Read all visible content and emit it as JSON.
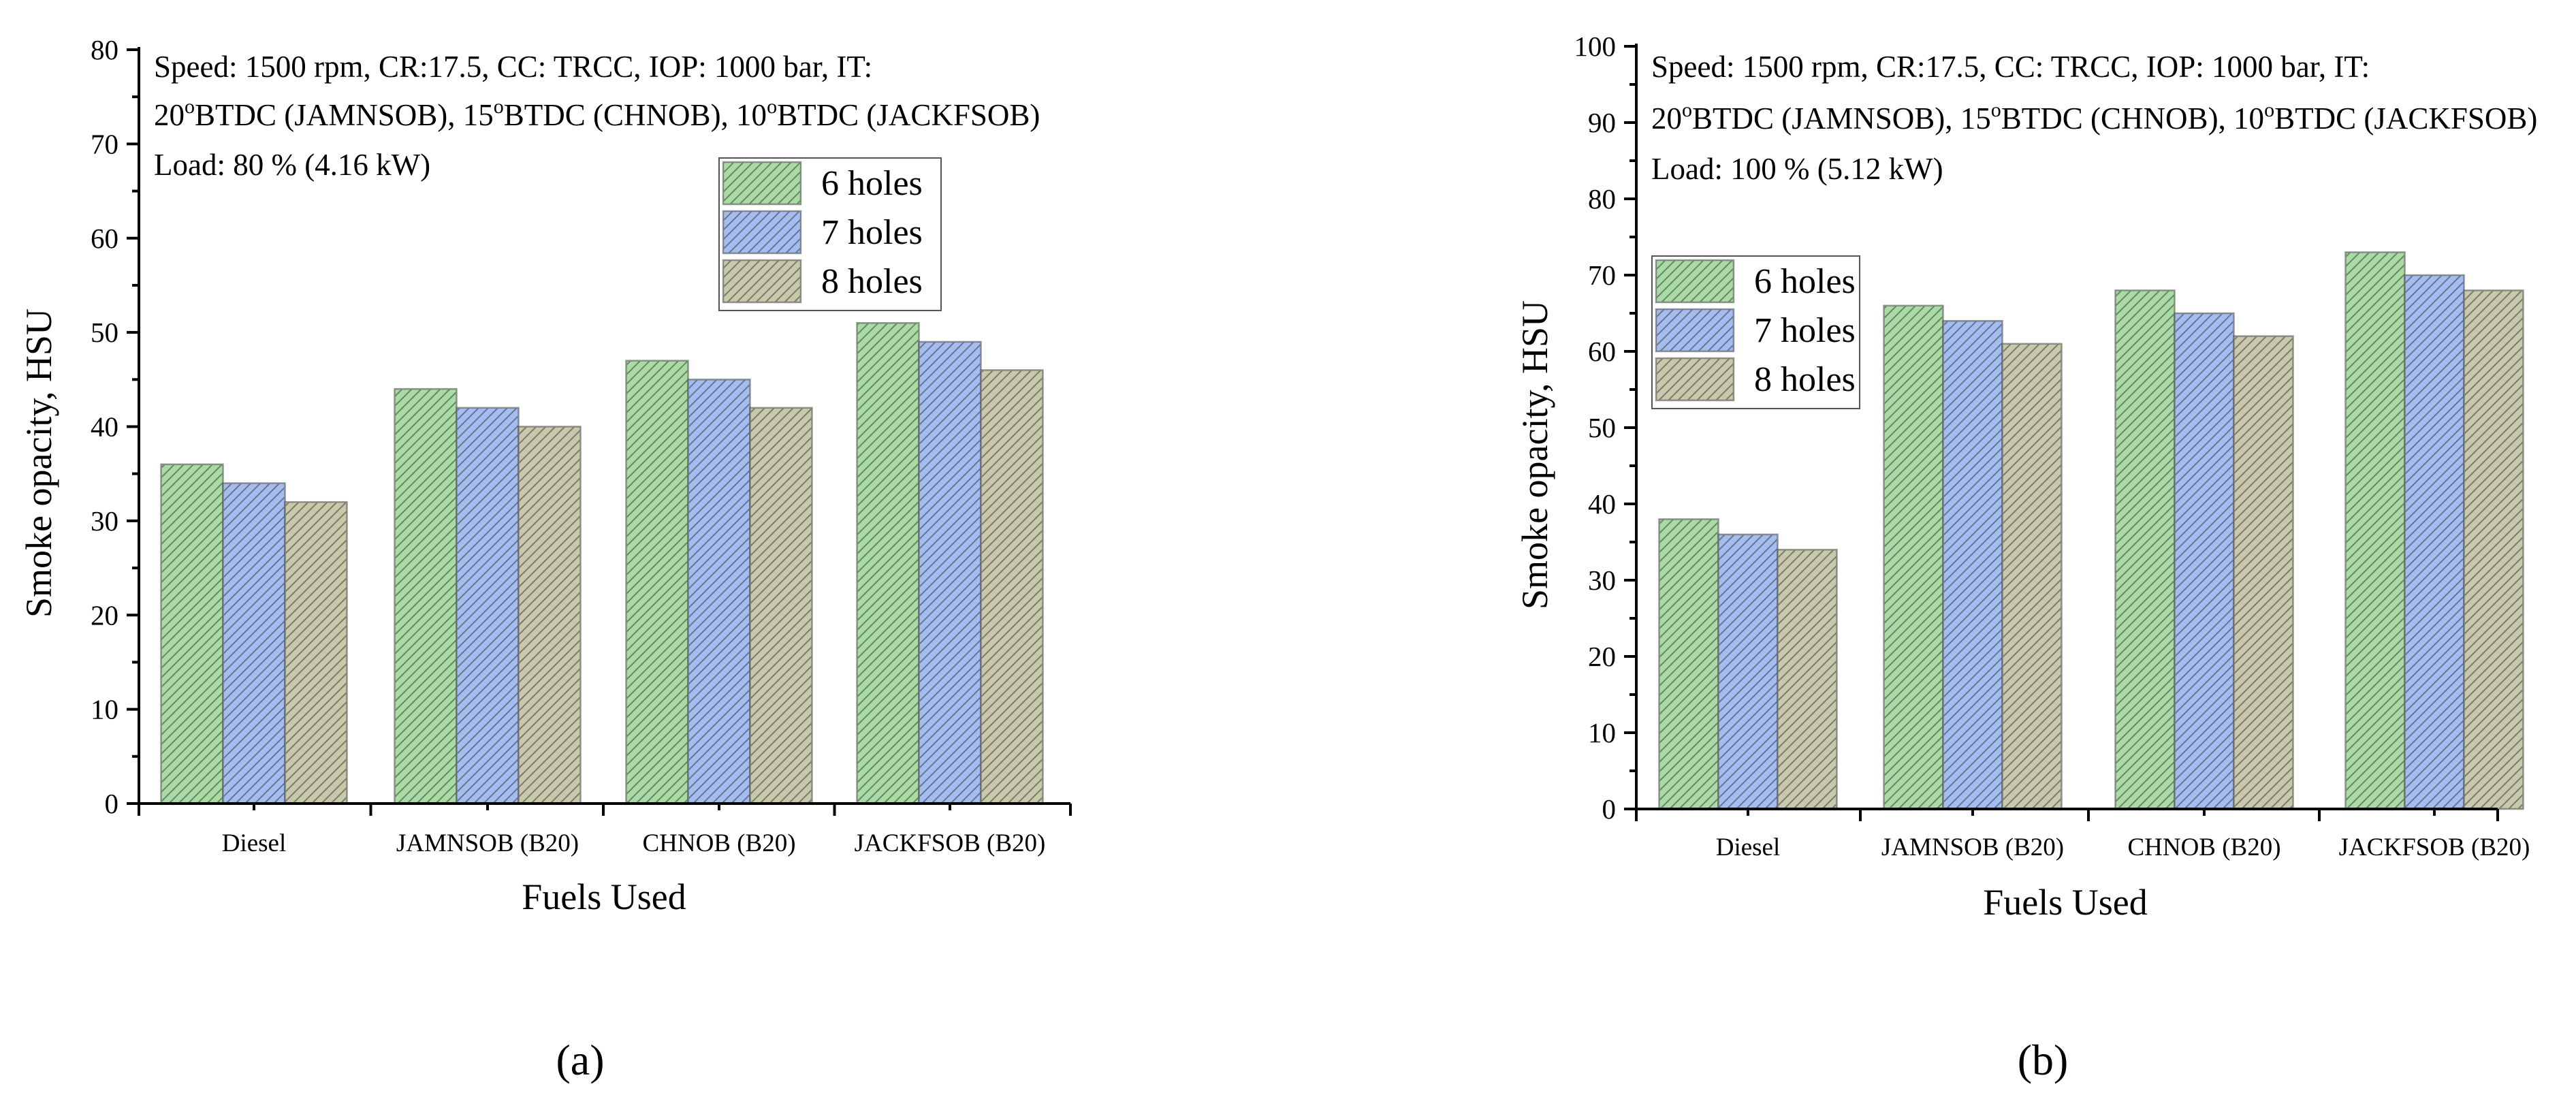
{
  "colors": {
    "s6": "#a9dca4",
    "s7": "#a4bdf0",
    "s8": "#c8c8aa",
    "hatch": "#3a3a3a"
  },
  "charts": [
    {
      "panel_label": "(a)",
      "annotation": {
        "line1": "Speed: 1500 rpm, CR:17.5, CC: TRCC, IOP: 1000 bar, IT:",
        "line2_a": "20",
        "line2_b": "o",
        "line2_c": "BTDC (JAMNSOB), 15",
        "line2_d": "o",
        "line2_e": "BTDC (CHNOB), 10",
        "line2_f": "o",
        "line2_g": "BTDC (JACKFSOB)",
        "line3": "Load: 80 %  (4.16 kW)"
      }
    },
    {
      "panel_label": "(b)",
      "annotation": {
        "line1": "Speed: 1500 rpm, CR:17.5, CC: TRCC, IOP: 1000 bar, IT:",
        "line2_a": "20",
        "line2_b": "o",
        "line2_c": "BTDC (JAMNSOB), 15",
        "line2_d": "o",
        "line2_e": "BTDC (CHNOB), 10",
        "line2_f": "o",
        "line2_g": "BTDC (JACKFSOB)",
        "line3": "Load: 100 %  (5.12 kW)"
      }
    }
  ],
  "chart_data": [
    {
      "type": "bar",
      "title": "",
      "xlabel": "Fuels Used",
      "ylabel": "Smoke opacity, HSU",
      "categories": [
        "Diesel",
        "JAMNSOB (B20)",
        "CHNOB (B20)",
        "JACKFSOB (B20)"
      ],
      "ylim": [
        0,
        80
      ],
      "yticks": [
        0,
        10,
        20,
        30,
        40,
        50,
        60,
        70,
        80
      ],
      "legend_position": "top-right",
      "series": [
        {
          "name": "6 holes",
          "values": [
            36,
            44,
            47,
            51
          ]
        },
        {
          "name": "7 holes",
          "values": [
            34,
            42,
            45,
            49
          ]
        },
        {
          "name": "8 holes",
          "values": [
            32,
            40,
            42,
            46
          ]
        }
      ]
    },
    {
      "type": "bar",
      "title": "",
      "xlabel": "Fuels Used",
      "ylabel": "Smoke opacity, HSU",
      "categories": [
        "Diesel",
        "JAMNSOB (B20)",
        "CHNOB (B20)",
        "JACKFSOB (B20)"
      ],
      "ylim": [
        0,
        100
      ],
      "yticks": [
        0,
        10,
        20,
        30,
        40,
        50,
        60,
        70,
        80,
        90,
        100
      ],
      "legend_position": "top-left",
      "series": [
        {
          "name": "6 holes",
          "values": [
            38,
            66,
            68,
            73
          ]
        },
        {
          "name": "7 holes",
          "values": [
            36,
            64,
            65,
            70
          ]
        },
        {
          "name": "8 holes",
          "values": [
            34,
            61,
            62,
            68
          ]
        }
      ]
    }
  ]
}
